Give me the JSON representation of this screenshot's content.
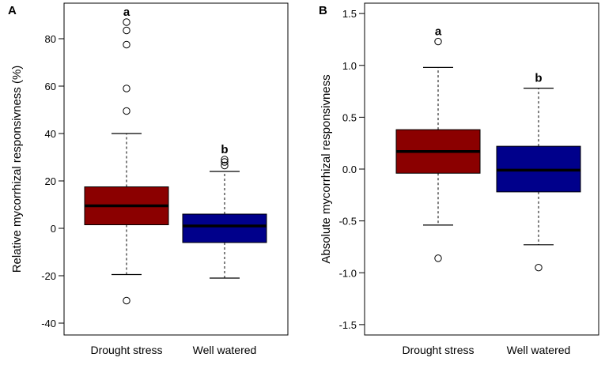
{
  "chart_data": [
    {
      "type": "boxplot",
      "panel_label": "A",
      "ylabel": "Relative mycorrhizal responsivness (%)",
      "xlabel": "",
      "ylim": [
        -45,
        95
      ],
      "yticks": [
        "-40",
        "-20",
        "0",
        "20",
        "40",
        "60",
        "80"
      ],
      "categories": [
        "Drought stress",
        "Well watered"
      ],
      "groups": [
        {
          "name": "Drought stress",
          "color": "#8b0000",
          "letter": "a",
          "whisker_low": -19.5,
          "q1": 1.5,
          "median": 9.5,
          "q3": 17.5,
          "whisker_high": 40,
          "outliers": [
            -30.5,
            49.5,
            59,
            77.5,
            83.5,
            87
          ]
        },
        {
          "name": "Well watered",
          "color": "#00008b",
          "letter": "b",
          "whisker_low": -21,
          "q1": -6,
          "median": 1,
          "q3": 6,
          "whisker_high": 24,
          "outliers": [
            26.5,
            28,
            29
          ]
        }
      ]
    },
    {
      "type": "boxplot",
      "panel_label": "B",
      "ylabel": "Absolute mycorrhizal responsivness",
      "xlabel": "",
      "ylim": [
        -1.6,
        1.6
      ],
      "yticks": [
        "-1.5",
        "-1.0",
        "-0.5",
        "0.0",
        "0.5",
        "1.0",
        "1.5"
      ],
      "categories": [
        "Drought stress",
        "Well watered"
      ],
      "groups": [
        {
          "name": "Drought stress",
          "color": "#8b0000",
          "letter": "a",
          "whisker_low": -0.54,
          "q1": -0.04,
          "median": 0.17,
          "q3": 0.38,
          "whisker_high": 0.98,
          "outliers": [
            -0.86,
            1.23
          ]
        },
        {
          "name": "Well watered",
          "color": "#00008b",
          "letter": "b",
          "whisker_low": -0.73,
          "q1": -0.22,
          "median": -0.01,
          "q3": 0.22,
          "whisker_high": 0.78,
          "outliers": [
            -0.95
          ]
        }
      ]
    }
  ]
}
